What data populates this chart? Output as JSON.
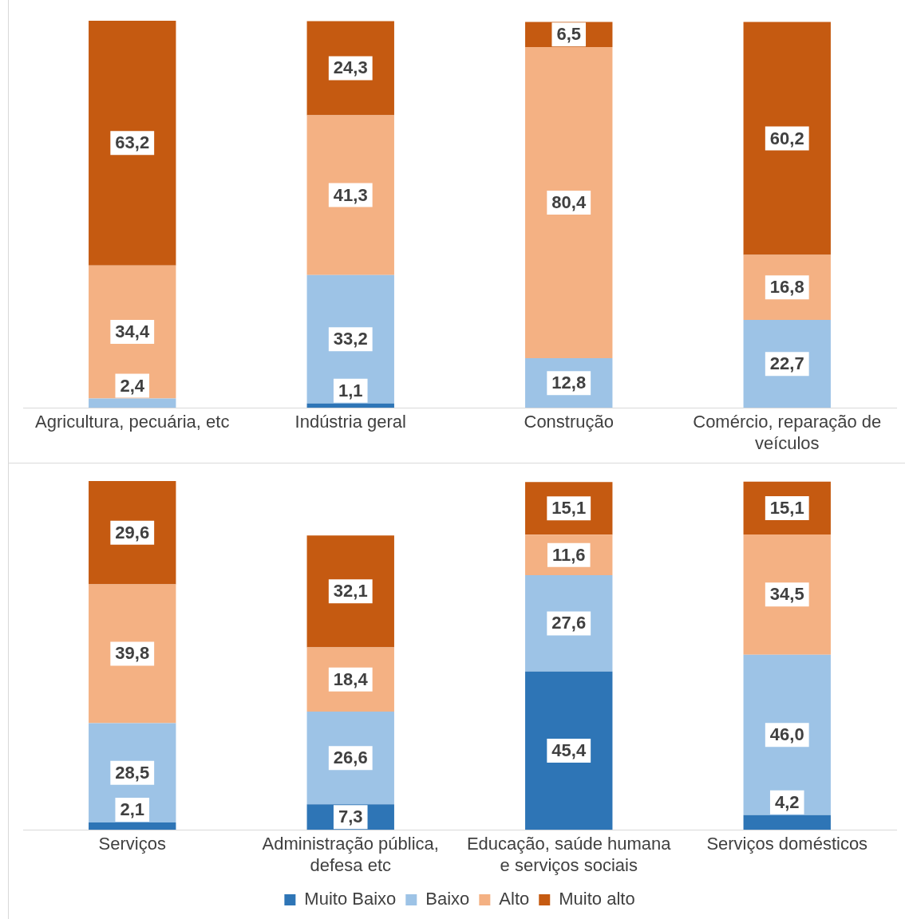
{
  "chart_data": [
    {
      "type": "bar",
      "stacked": true,
      "legend": false,
      "tick_labels": "x",
      "categories": [
        "Agricultura, pecuária, etc",
        "Indústria geral",
        "Construção",
        "Comércio, reparação de veículos"
      ],
      "series": [
        {
          "color": "#2e75b6",
          "values": [
            null,
            1.1,
            null,
            null
          ],
          "value_labels": [
            null,
            "1,1",
            null,
            null
          ]
        },
        {
          "color": "#9dc3e6",
          "values": [
            2.4,
            33.2,
            12.8,
            22.7
          ],
          "value_labels": [
            "2,4",
            "33,2",
            "12,8",
            "22,7"
          ]
        },
        {
          "color": "#f4b183",
          "values": [
            34.4,
            41.3,
            80.4,
            16.8
          ],
          "value_labels": [
            "34,4",
            "41,3",
            "80,4",
            "16,8"
          ]
        },
        {
          "color": "#c55a11",
          "values": [
            63.2,
            24.3,
            6.5,
            60.2
          ],
          "value_labels": [
            "63,2",
            "24,3",
            "6,5",
            "60,2"
          ]
        }
      ]
    },
    {
      "type": "bar",
      "stacked": true,
      "legend": "bottom",
      "tick_labels": "x",
      "categories": [
        "Serviços",
        "Administração pública, defesa etc",
        "Educação, saúde humana e serviços sociais",
        "Serviços domésticos"
      ],
      "series": [
        {
          "name": "Muito Baixo",
          "color": "#2e75b6",
          "values": [
            2.1,
            7.3,
            45.4,
            4.2
          ],
          "value_labels": [
            "2,1",
            "7,3",
            "45,4",
            "4,2"
          ]
        },
        {
          "name": "Baixo",
          "color": "#9dc3e6",
          "values": [
            28.5,
            26.6,
            27.6,
            46.0
          ],
          "value_labels": [
            "28,5",
            "26,6",
            "27,6",
            "46,0"
          ]
        },
        {
          "name": "Alto",
          "color": "#f4b183",
          "values": [
            39.8,
            18.4,
            11.6,
            34.5
          ],
          "value_labels": [
            "39,8",
            "18,4",
            "11,6",
            "34,5"
          ]
        },
        {
          "name": "Muito alto",
          "color": "#c55a11",
          "values": [
            29.6,
            32.1,
            15.1,
            15.1
          ],
          "value_labels": [
            "29,6",
            "32,1",
            "15,1",
            "15,1"
          ]
        }
      ]
    }
  ]
}
